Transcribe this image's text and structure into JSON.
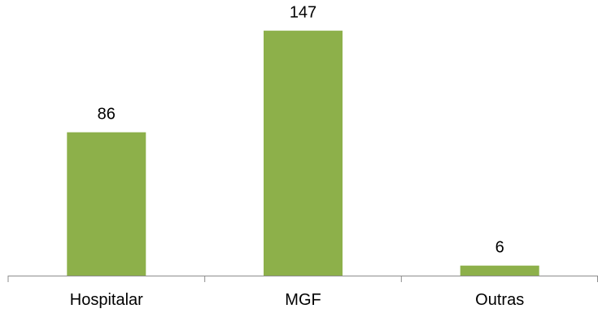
{
  "chart_data": {
    "type": "bar",
    "categories": [
      "Hospitalar",
      "MGF",
      "Outras"
    ],
    "values": [
      86,
      147,
      6
    ],
    "title": "",
    "xlabel": "",
    "ylabel": "",
    "ylim": [
      0,
      160
    ],
    "grid": false,
    "legend": "none",
    "bar_color": "#8DB04A",
    "axis_color": "#8C8C8C"
  }
}
